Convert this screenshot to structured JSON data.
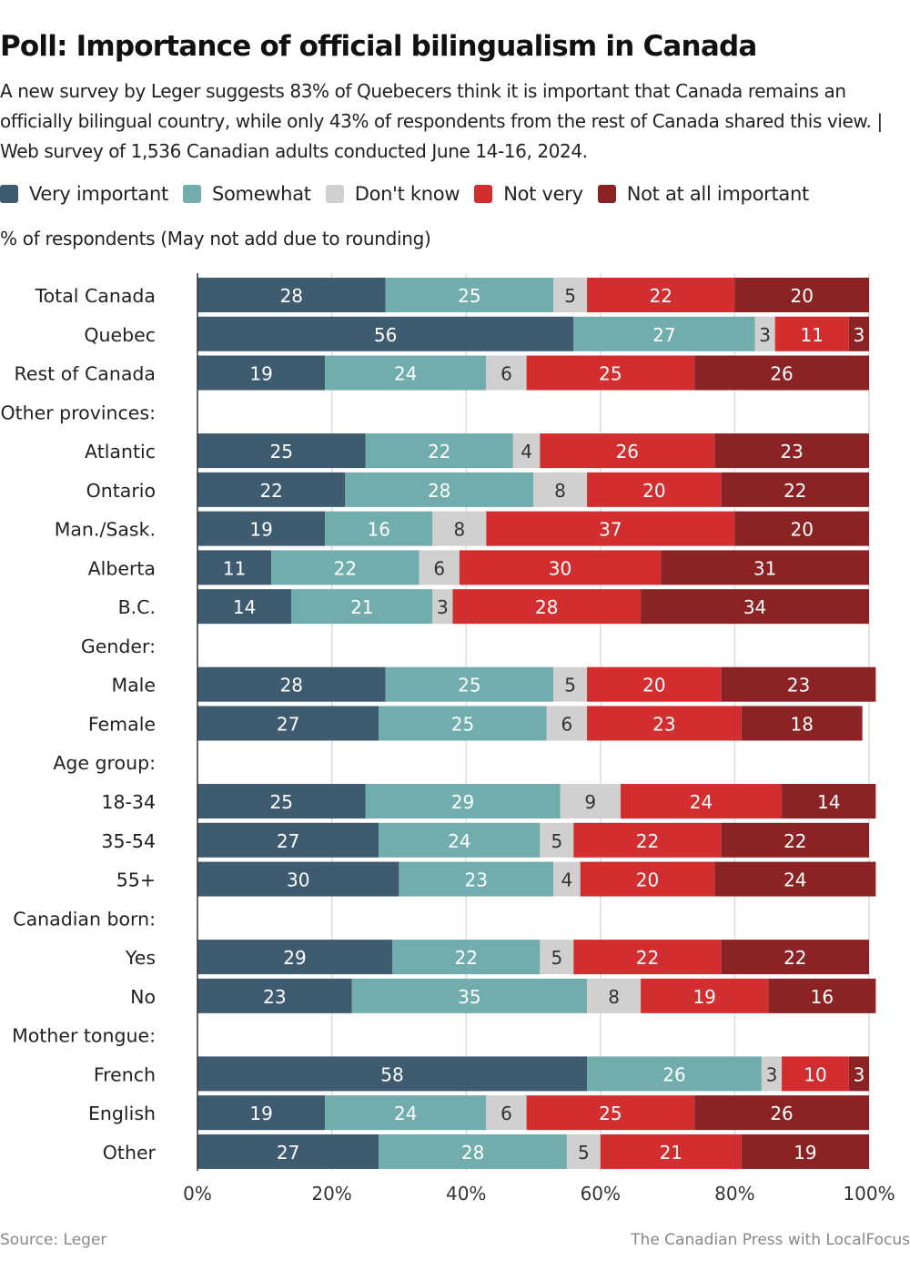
{
  "title": "Poll: Importance of official bilingualism in Canada",
  "subtitle": "A new survey by Leger suggests 83% of Quebecers think it is important that Canada remains an officially bilingual country, while only 43% of respondents from the rest of Canada shared this view. | Web survey of 1,536 Canadian adults conducted June 14-16, 2024.",
  "unit_note": "% of respondents (May not add due to rounding)",
  "source": "Source:  Leger",
  "credit": "The Canadian Press with LocalFocus",
  "chart_data": {
    "type": "bar",
    "orientation": "horizontal",
    "stacked": true,
    "title": "Poll: Importance of official bilingualism in Canada",
    "xlim": [
      0,
      100
    ],
    "xticks": [
      "0%",
      "20%",
      "40%",
      "60%",
      "80%",
      "100%"
    ],
    "grid": true,
    "legend_position": "top",
    "series": [
      {
        "name": "Very important",
        "color": "#3e5b6f"
      },
      {
        "name": "Somewhat",
        "color": "#72adad"
      },
      {
        "name": "Don't know",
        "color": "#d0d0d0"
      },
      {
        "name": "Not very",
        "color": "#d22e30"
      },
      {
        "name": "Not at all important",
        "color": "#8b2324"
      }
    ],
    "rows": [
      {
        "label": "Total Canada",
        "values": [
          28,
          25,
          5,
          22,
          20
        ]
      },
      {
        "label": "Quebec",
        "values": [
          56,
          27,
          3,
          11,
          3
        ]
      },
      {
        "label": "Rest of Canada",
        "values": [
          19,
          24,
          6,
          25,
          26
        ]
      },
      {
        "label": "Other provinces:",
        "values": null
      },
      {
        "label": "Atlantic",
        "values": [
          25,
          22,
          4,
          26,
          23
        ]
      },
      {
        "label": "Ontario",
        "values": [
          22,
          28,
          8,
          20,
          22
        ]
      },
      {
        "label": "Man./Sask.",
        "values": [
          19,
          16,
          8,
          37,
          20
        ]
      },
      {
        "label": "Alberta",
        "values": [
          11,
          22,
          6,
          30,
          31
        ]
      },
      {
        "label": "B.C.",
        "values": [
          14,
          21,
          3,
          28,
          34
        ]
      },
      {
        "label": "Gender:",
        "values": null
      },
      {
        "label": "Male",
        "values": [
          28,
          25,
          5,
          20,
          23
        ]
      },
      {
        "label": "Female",
        "values": [
          27,
          25,
          6,
          23,
          18
        ]
      },
      {
        "label": "Age group:",
        "values": null
      },
      {
        "label": "18-34",
        "values": [
          25,
          29,
          9,
          24,
          14
        ]
      },
      {
        "label": "35-54",
        "values": [
          27,
          24,
          5,
          22,
          22
        ]
      },
      {
        "label": "55+",
        "values": [
          30,
          23,
          4,
          20,
          24
        ]
      },
      {
        "label": "Canadian born:",
        "values": null
      },
      {
        "label": "Yes",
        "values": [
          29,
          22,
          5,
          22,
          22
        ]
      },
      {
        "label": "No",
        "values": [
          23,
          35,
          8,
          19,
          16
        ]
      },
      {
        "label": "Mother tongue:",
        "values": null
      },
      {
        "label": "French",
        "values": [
          58,
          26,
          3,
          10,
          3
        ]
      },
      {
        "label": "English",
        "values": [
          19,
          24,
          6,
          25,
          26
        ]
      },
      {
        "label": "Other",
        "values": [
          27,
          28,
          5,
          21,
          19
        ]
      }
    ]
  }
}
